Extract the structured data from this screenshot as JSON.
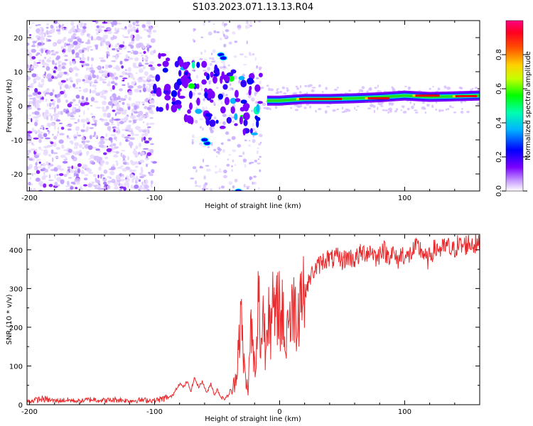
{
  "title": "S103.2023.071.13.13.R04",
  "colors": {
    "snr_line": "#e8292b",
    "axis": "#000000",
    "ridge_core": "#e60000",
    "ridge_mid": "#22dd22",
    "ridge_edge": "#1a1aff",
    "noise": "#8a2be2"
  },
  "chart_data": [
    {
      "type": "heatmap",
      "name": "spectrogram",
      "title": "S103.2023.071.13.13.R04",
      "xlabel": "Height of straight line (km)",
      "ylabel": "Frequency (Hz)",
      "xlim": [
        -202,
        160
      ],
      "ylim": [
        -25,
        25
      ],
      "xticks": [
        -200,
        -100,
        0,
        100
      ],
      "yticks": [
        -20,
        -10,
        0,
        10,
        20
      ],
      "xtick_labels": [
        "-200",
        "-100",
        "0",
        "100"
      ],
      "ytick_labels": [
        "-20",
        "-10",
        "0",
        "10",
        "20"
      ],
      "ridge": {
        "x": [
          -100,
          -90,
          -80,
          -70,
          -60,
          -50,
          -40,
          -30,
          -20,
          -10,
          0,
          20,
          40,
          60,
          80,
          100,
          120,
          140,
          160
        ],
        "freq": [
          7,
          4,
          1,
          0,
          -1,
          2,
          3,
          1,
          1,
          1.5,
          1.5,
          2,
          2,
          2.2,
          2.5,
          3,
          2.6,
          2.8,
          3
        ],
        "amplitude": [
          0.35,
          0.4,
          0.45,
          0.4,
          0.35,
          0.45,
          0.5,
          0.55,
          0.6,
          0.65,
          0.7,
          0.85,
          0.9,
          0.85,
          0.9,
          0.8,
          0.85,
          0.8,
          0.7
        ]
      },
      "colorbar": {
        "label": "Normalized spectral amplitude",
        "range": [
          0,
          1
        ],
        "ticks": [
          0.0,
          0.2,
          0.4,
          0.6,
          0.8
        ],
        "tick_labels": [
          "0.0",
          "0.2",
          "0.4",
          "0.6",
          "0.8"
        ],
        "colormap": [
          "#ffffff",
          "#8b00ff",
          "#0000ff",
          "#00ffff",
          "#00ff00",
          "#ffff00",
          "#ff8000",
          "#ff0000",
          "#ff0080"
        ]
      }
    },
    {
      "type": "line",
      "name": "snr",
      "title": "",
      "xlabel": "Height of straight line (km)",
      "ylabel": "SNR (10 * v/v)",
      "xlim": [
        -202,
        160
      ],
      "ylim": [
        0,
        440
      ],
      "xticks": [
        -200,
        -100,
        0,
        100
      ],
      "yticks": [
        0,
        100,
        200,
        300,
        400
      ],
      "xtick_labels": [
        "-200",
        "-100",
        "0",
        "100"
      ],
      "ytick_labels": [
        "0",
        "100",
        "200",
        "300",
        "400"
      ],
      "series": [
        {
          "name": "SNR",
          "x": [
            -202,
            -190,
            -180,
            -170,
            -160,
            -150,
            -140,
            -130,
            -120,
            -110,
            -100,
            -95,
            -90,
            -86,
            -83,
            -80,
            -77,
            -74,
            -71,
            -68,
            -65,
            -62,
            -58,
            -55,
            -52,
            -50,
            -47,
            -44,
            -41,
            -38,
            -35,
            -33,
            -31,
            -29,
            -27,
            -25,
            -23,
            -21,
            -19,
            -17,
            -15,
            -13,
            -11,
            -9,
            -7,
            -5,
            -3,
            -1,
            1,
            3,
            5,
            7,
            9,
            11,
            13,
            15,
            17,
            20,
            23,
            26,
            30,
            34,
            38,
            42,
            46,
            50,
            55,
            60,
            65,
            70,
            74,
            78,
            82,
            86,
            90,
            94,
            98,
            102,
            106,
            110,
            114,
            118,
            122,
            126,
            130,
            134,
            138,
            142,
            146,
            150,
            154,
            158,
            160
          ],
          "values": [
            8,
            15,
            10,
            12,
            9,
            14,
            11,
            13,
            10,
            12,
            11,
            14,
            18,
            22,
            40,
            55,
            45,
            60,
            35,
            70,
            45,
            60,
            30,
            55,
            25,
            40,
            20,
            15,
            25,
            35,
            70,
            160,
            230,
            120,
            60,
            40,
            210,
            130,
            60,
            300,
            140,
            250,
            120,
            330,
            180,
            260,
            200,
            300,
            200,
            250,
            120,
            280,
            180,
            300,
            220,
            260,
            300,
            290,
            315,
            340,
            355,
            370,
            378,
            375,
            380,
            372,
            382,
            375,
            390,
            395,
            398,
            375,
            408,
            385,
            395,
            370,
            392,
            378,
            395,
            405,
            398,
            370,
            395,
            405,
            400,
            410,
            395,
            412,
            408,
            415,
            418,
            412,
            410
          ]
        }
      ]
    }
  ]
}
